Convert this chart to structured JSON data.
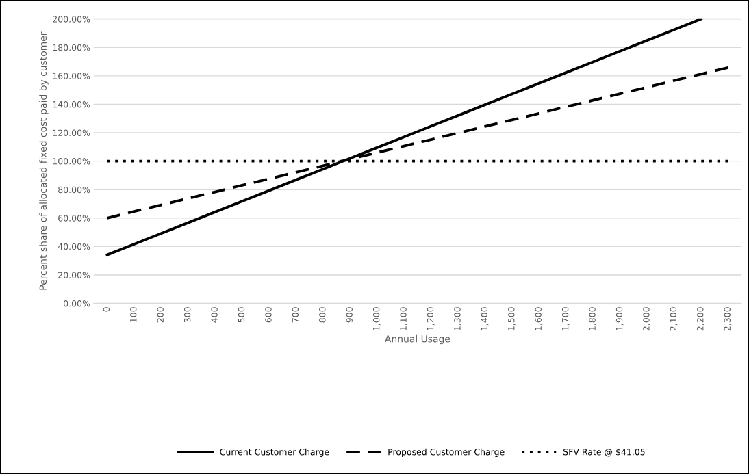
{
  "chart_data": {
    "type": "line",
    "xlabel": "Annual Usage",
    "ylabel": "Percent share of allocated fixed cost paid by customer",
    "categories": [
      "0",
      "100",
      "200",
      "300",
      "400",
      "500",
      "600",
      "700",
      "800",
      "900",
      "1,000",
      "1,100",
      "1,200",
      "1,300",
      "1,400",
      "1,500",
      "1,600",
      "1,700",
      "1,800",
      "1,900",
      "2,000",
      "2,100",
      "2,200",
      "2,300"
    ],
    "series": [
      {
        "name": "Current Customer Charge",
        "color": "#000000",
        "line_style": "solid",
        "values": [
          34.1,
          41.6,
          49.2,
          56.7,
          64.3,
          71.8,
          79.3,
          86.9,
          94.4,
          102.0,
          109.5,
          117.0,
          124.6,
          132.1,
          139.7,
          147.2,
          154.7,
          162.3,
          169.8,
          177.4,
          184.9,
          192.4,
          200.0,
          null
        ]
      },
      {
        "name": "Proposed Customer Charge",
        "color": "#000000",
        "line_style": "dashed",
        "values": [
          60.0,
          64.6,
          69.2,
          73.8,
          78.4,
          83.0,
          87.6,
          92.2,
          96.8,
          101.4,
          106.0,
          110.6,
          115.2,
          119.8,
          124.4,
          129.0,
          133.6,
          138.2,
          142.8,
          147.4,
          152.0,
          156.6,
          161.2,
          165.8
        ]
      },
      {
        "name": "SFV Rate @ $41.05",
        "color": "#000000",
        "line_style": "dotted",
        "values": [
          100,
          100,
          100,
          100,
          100,
          100,
          100,
          100,
          100,
          100,
          100,
          100,
          100,
          100,
          100,
          100,
          100,
          100,
          100,
          100,
          100,
          100,
          100,
          100
        ]
      }
    ],
    "ylim": [
      0,
      200
    ],
    "yticks": [
      {
        "value": 0,
        "label": "0.00%"
      },
      {
        "value": 20,
        "label": "20.00%"
      },
      {
        "value": 40,
        "label": "40.00%"
      },
      {
        "value": 60,
        "label": "60.00%"
      },
      {
        "value": 80,
        "label": "80.00%"
      },
      {
        "value": 100,
        "label": "100.00%"
      },
      {
        "value": 120,
        "label": "120.00%"
      },
      {
        "value": 140,
        "label": "140.00%"
      },
      {
        "value": 160,
        "label": "160.00%"
      },
      {
        "value": 180,
        "label": "180.00%"
      },
      {
        "value": 200,
        "label": "200.00%"
      }
    ],
    "grid": "y",
    "legend": "bottom",
    "marker": "none"
  }
}
